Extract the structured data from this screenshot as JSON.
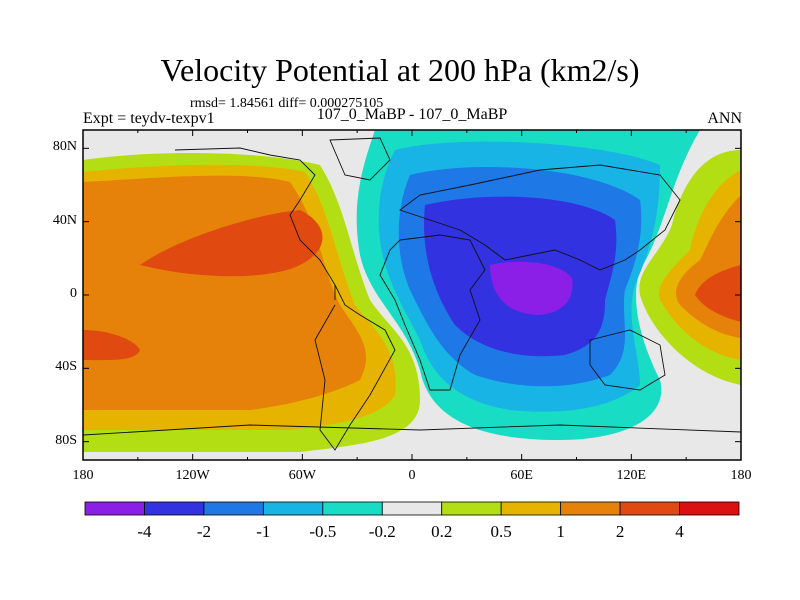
{
  "chart_data": {
    "type": "heatmap",
    "title": "Velocity Potential at 200 hPa (km2/s)",
    "stats_label": "rmsd= 1.84561 diff= 0.000275105",
    "left_label": "Expt = teydv-texpv1",
    "center_label": "107_0_MaBP - 107_0_MaBP",
    "right_label": "ANN",
    "x_ticks": [
      "180",
      "120W",
      "60W",
      "0",
      "60E",
      "120E",
      "180"
    ],
    "y_ticks": [
      "80N",
      "40N",
      "0",
      "40S",
      "80S"
    ],
    "xlim": [
      -180,
      180
    ],
    "ylim": [
      -90,
      90
    ],
    "colorbar": {
      "labels": [
        "-4",
        "-2",
        "-1",
        "-0.5",
        "-0.2",
        "0.2",
        "0.5",
        "1",
        "2",
        "4"
      ],
      "colors": [
        "#8b1fe8",
        "#3232e0",
        "#1e78e6",
        "#19b4e6",
        "#19dcc4",
        "#e8e8e8",
        "#b4de14",
        "#e6b400",
        "#e6820a",
        "#e04a10",
        "#dc1010"
      ]
    }
  }
}
